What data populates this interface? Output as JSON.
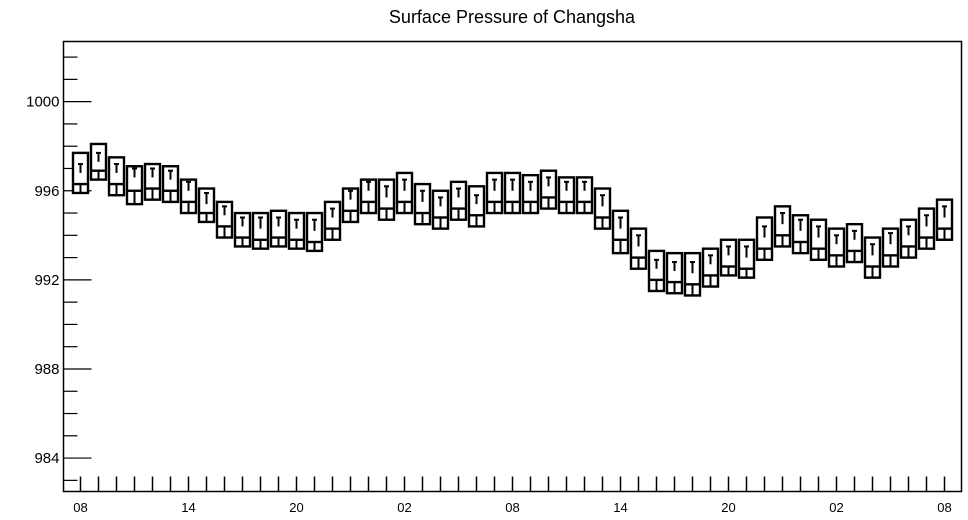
{
  "chart_data": {
    "type": "box",
    "title": "Surface Pressure of Changsha",
    "xlabel": "",
    "ylabel": "",
    "ylim": [
      982.5,
      1002.7
    ],
    "yticks": [
      984,
      988,
      992,
      996,
      1000
    ],
    "x_tick_labels": [
      "08",
      "14",
      "20",
      "02",
      "08",
      "14",
      "20",
      "02",
      "08"
    ],
    "x_tick_label_every": 6,
    "n_boxes": 49,
    "grid": false,
    "series": [
      {
        "low": [
          995.9,
          996.5,
          995.8,
          995.4,
          995.6,
          995.5,
          995.0,
          994.6,
          993.9,
          993.5,
          993.4,
          993.5,
          993.4,
          993.3,
          993.8,
          994.6,
          995.0,
          994.7,
          995.0,
          994.5,
          994.3,
          994.7,
          994.4,
          995.0,
          995.0,
          995.0,
          995.2,
          995.0,
          995.0,
          994.3,
          993.2,
          992.5,
          991.5,
          991.4,
          991.3,
          991.7,
          992.2,
          992.1,
          992.9,
          993.5,
          993.2,
          992.9,
          992.6,
          992.8,
          992.1,
          992.6,
          993.0,
          993.4,
          993.8
        ],
        "q1": [
          996.3,
          996.9,
          996.3,
          996.0,
          996.1,
          996.0,
          995.5,
          995.0,
          994.4,
          993.9,
          993.8,
          993.9,
          993.8,
          993.7,
          994.3,
          995.1,
          995.5,
          995.2,
          995.5,
          995.0,
          994.8,
          995.2,
          994.9,
          995.5,
          995.5,
          995.5,
          995.7,
          995.5,
          995.5,
          994.8,
          993.8,
          993.0,
          992.0,
          991.9,
          991.8,
          992.2,
          992.6,
          992.5,
          993.4,
          994.0,
          993.7,
          993.4,
          993.1,
          993.3,
          992.6,
          993.1,
          993.5,
          993.9,
          994.3
        ],
        "median": [
          996.8,
          997.3,
          996.8,
          996.6,
          996.6,
          996.5,
          996.0,
          995.4,
          994.9,
          994.4,
          994.3,
          994.4,
          994.3,
          994.2,
          994.8,
          995.6,
          996.0,
          995.7,
          996.0,
          995.5,
          995.3,
          995.7,
          995.4,
          996.0,
          996.0,
          996.0,
          996.2,
          996.0,
          996.0,
          995.3,
          994.3,
          993.5,
          992.5,
          992.4,
          992.3,
          992.7,
          993.1,
          993.0,
          993.9,
          994.5,
          994.2,
          993.9,
          993.6,
          993.8,
          993.1,
          993.6,
          994.0,
          994.4,
          994.8
        ],
        "q3": [
          997.2,
          997.7,
          997.2,
          997.0,
          997.0,
          996.9,
          996.4,
          995.9,
          995.3,
          994.8,
          994.8,
          994.8,
          994.7,
          994.7,
          995.2,
          996.0,
          996.4,
          996.2,
          996.5,
          996.0,
          995.7,
          996.1,
          995.8,
          996.5,
          996.5,
          996.4,
          996.6,
          996.4,
          996.4,
          995.8,
          994.8,
          994.0,
          992.9,
          992.8,
          992.8,
          993.1,
          993.5,
          993.5,
          994.4,
          995.0,
          994.7,
          994.4,
          994.0,
          994.2,
          993.6,
          994.1,
          994.4,
          994.9,
          995.3
        ],
        "high": [
          997.7,
          998.1,
          997.5,
          997.1,
          997.2,
          997.1,
          996.5,
          996.1,
          995.5,
          995.0,
          995.0,
          995.1,
          995.0,
          995.0,
          995.5,
          996.1,
          996.5,
          996.5,
          996.8,
          996.3,
          996.0,
          996.4,
          996.2,
          996.8,
          996.8,
          996.7,
          996.9,
          996.6,
          996.6,
          996.1,
          995.1,
          994.3,
          993.3,
          993.2,
          993.2,
          993.4,
          993.8,
          993.8,
          994.8,
          995.3,
          994.9,
          994.7,
          994.3,
          994.5,
          993.9,
          994.3,
          994.7,
          995.2,
          995.6
        ]
      }
    ]
  }
}
